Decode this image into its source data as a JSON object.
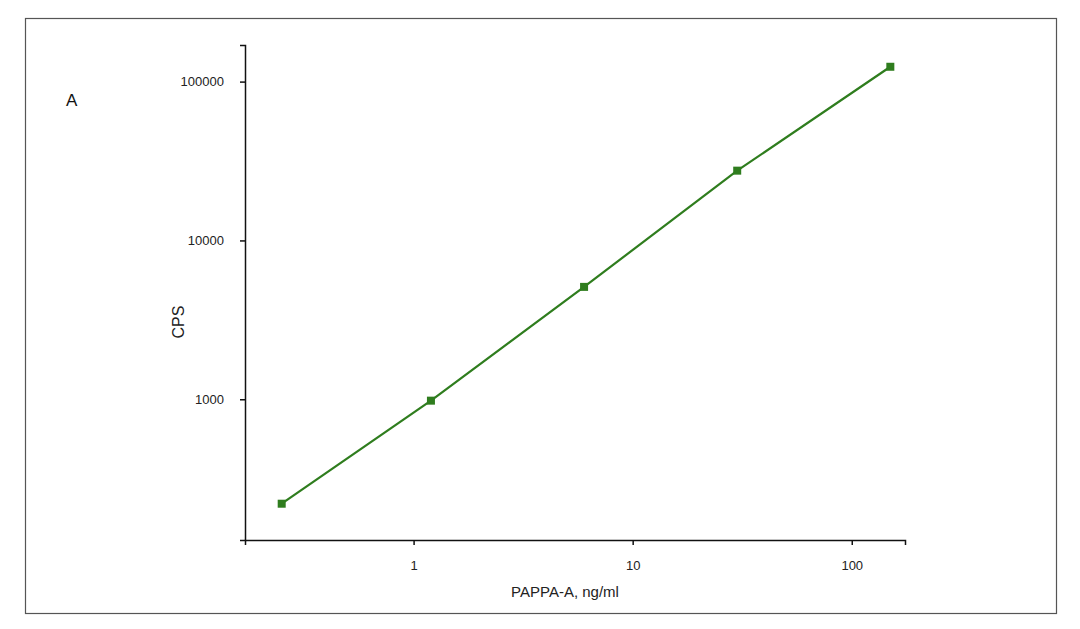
{
  "chart_data": {
    "type": "line",
    "title": "A",
    "x_label": "PAPPA-A, ng/ml",
    "y_label": "CPS",
    "x": [
      0.25,
      1.2,
      6,
      30,
      150
    ],
    "values": [
      220,
      980,
      5100,
      27500,
      124000
    ],
    "color": "#2f7d1e",
    "marker": "square",
    "line_style": "solid",
    "log": true,
    "xlim": [
      0.17,
      175
    ],
    "xticks": [
      1,
      10,
      100
    ],
    "ylim": [
      130,
      170000
    ],
    "yticks": [
      1000,
      10000,
      100000
    ],
    "grid": false
  }
}
